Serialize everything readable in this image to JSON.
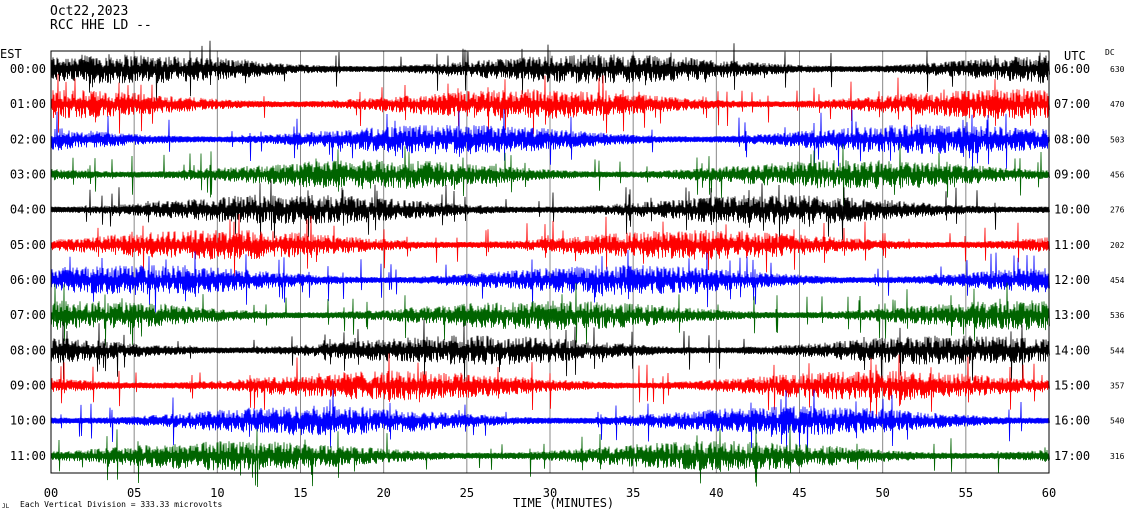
{
  "header": {
    "date": "Oct22,2023",
    "station": "RCC HHE LD --",
    "left_zone": "EST",
    "right_zone": "UTC",
    "dc_label": "DC"
  },
  "footer": {
    "scale_note": "Each Vertical Division =  333.33 microvolts",
    "corner_mark": "JL"
  },
  "chart_data": {
    "type": "line",
    "title": "",
    "xlabel": "TIME (MINUTES)",
    "ylabel": "",
    "xlim": [
      0,
      60
    ],
    "x_ticks": [
      "00",
      "05",
      "10",
      "15",
      "20",
      "25",
      "30",
      "35",
      "40",
      "45",
      "50",
      "55",
      "60"
    ],
    "grid": true,
    "trace_colors": [
      "#000000",
      "#ff0000",
      "#0000ff",
      "#006400"
    ],
    "rows": [
      {
        "est": "00:00",
        "utc": "06:00",
        "dc": "630",
        "color": "#000000"
      },
      {
        "est": "01:00",
        "utc": "07:00",
        "dc": "470",
        "color": "#ff0000"
      },
      {
        "est": "02:00",
        "utc": "08:00",
        "dc": "503",
        "color": "#0000ff"
      },
      {
        "est": "03:00",
        "utc": "09:00",
        "dc": "456",
        "color": "#006400"
      },
      {
        "est": "04:00",
        "utc": "10:00",
        "dc": "276",
        "color": "#000000"
      },
      {
        "est": "05:00",
        "utc": "11:00",
        "dc": "202",
        "color": "#ff0000"
      },
      {
        "est": "06:00",
        "utc": "12:00",
        "dc": "454",
        "color": "#0000ff"
      },
      {
        "est": "07:00",
        "utc": "13:00",
        "dc": "536",
        "color": "#006400"
      },
      {
        "est": "08:00",
        "utc": "14:00",
        "dc": "544",
        "color": "#000000"
      },
      {
        "est": "09:00",
        "utc": "15:00",
        "dc": "357",
        "color": "#ff0000"
      },
      {
        "est": "10:00",
        "utc": "16:00",
        "dc": "540",
        "color": "#0000ff"
      },
      {
        "est": "11:00",
        "utc": "17:00",
        "dc": "316",
        "color": "#006400"
      }
    ]
  }
}
